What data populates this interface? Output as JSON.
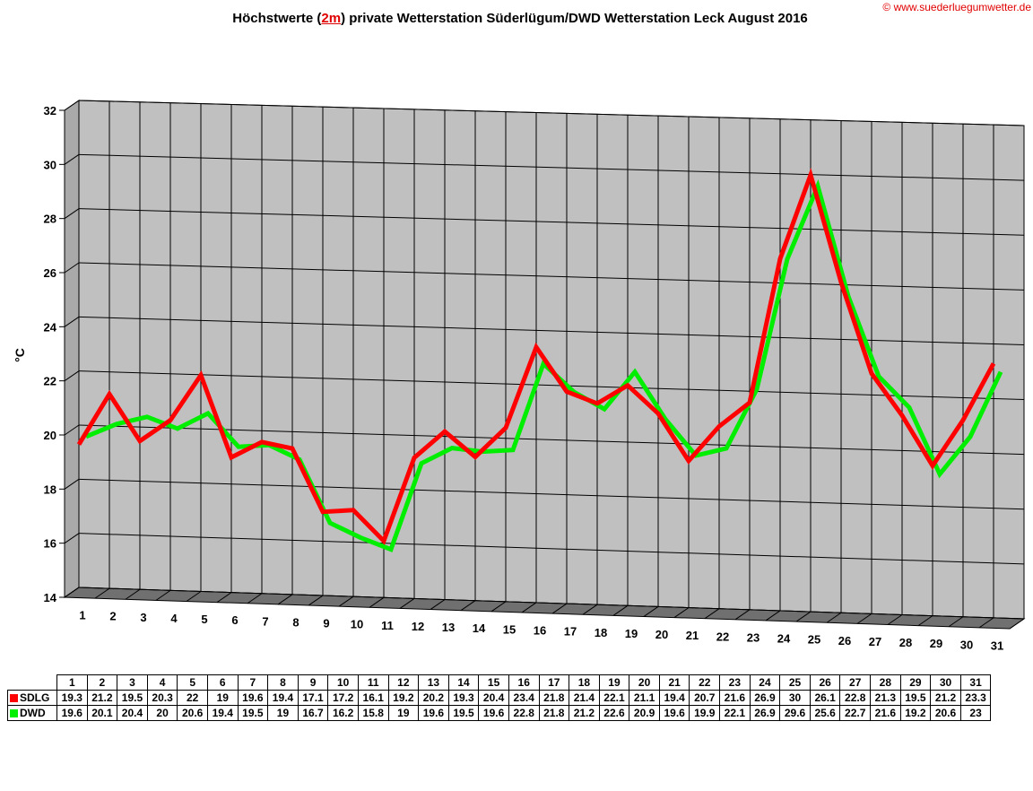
{
  "title": {
    "before": "Höchstwerte (",
    "highlight": "2m",
    "after": ") private Wetterstation Süderlügum/DWD Wetterstation Leck August 2016"
  },
  "copyright": "© www.suederluegumwetter.de",
  "chart_data": {
    "type": "line",
    "title": "Höchstwerte (2m) private Wetterstation Süderlügum/DWD Wetterstation Leck August 2016",
    "xlabel": "",
    "ylabel": "°C",
    "ylim": [
      14,
      32
    ],
    "yticks": [
      14,
      16,
      18,
      20,
      22,
      24,
      26,
      28,
      30,
      32
    ],
    "grid": true,
    "legend": "bottom-left table",
    "categories": [
      "1",
      "2",
      "3",
      "4",
      "5",
      "6",
      "7",
      "8",
      "9",
      "10",
      "11",
      "12",
      "13",
      "14",
      "15",
      "16",
      "17",
      "18",
      "19",
      "20",
      "21",
      "22",
      "23",
      "24",
      "25",
      "26",
      "27",
      "28",
      "29",
      "30",
      "31"
    ],
    "series": [
      {
        "name": "SDLG",
        "color": "#ff0000",
        "values": [
          19.3,
          21.2,
          19.5,
          20.3,
          22,
          19,
          19.6,
          19.4,
          17.1,
          17.2,
          16.1,
          19.2,
          20.2,
          19.3,
          20.4,
          23.4,
          21.8,
          21.4,
          22.1,
          21.1,
          19.4,
          20.7,
          21.6,
          26.9,
          30,
          26.1,
          22.8,
          21.3,
          19.5,
          21.2,
          23.3
        ]
      },
      {
        "name": "DWD",
        "color": "#00ee00",
        "values": [
          19.6,
          20.1,
          20.4,
          20,
          20.6,
          19.4,
          19.5,
          19,
          16.7,
          16.2,
          15.8,
          19,
          19.6,
          19.5,
          19.6,
          22.8,
          21.8,
          21.2,
          22.6,
          20.9,
          19.6,
          19.9,
          22.1,
          26.9,
          29.6,
          25.6,
          22.7,
          21.6,
          19.2,
          20.6,
          23
        ]
      }
    ]
  }
}
